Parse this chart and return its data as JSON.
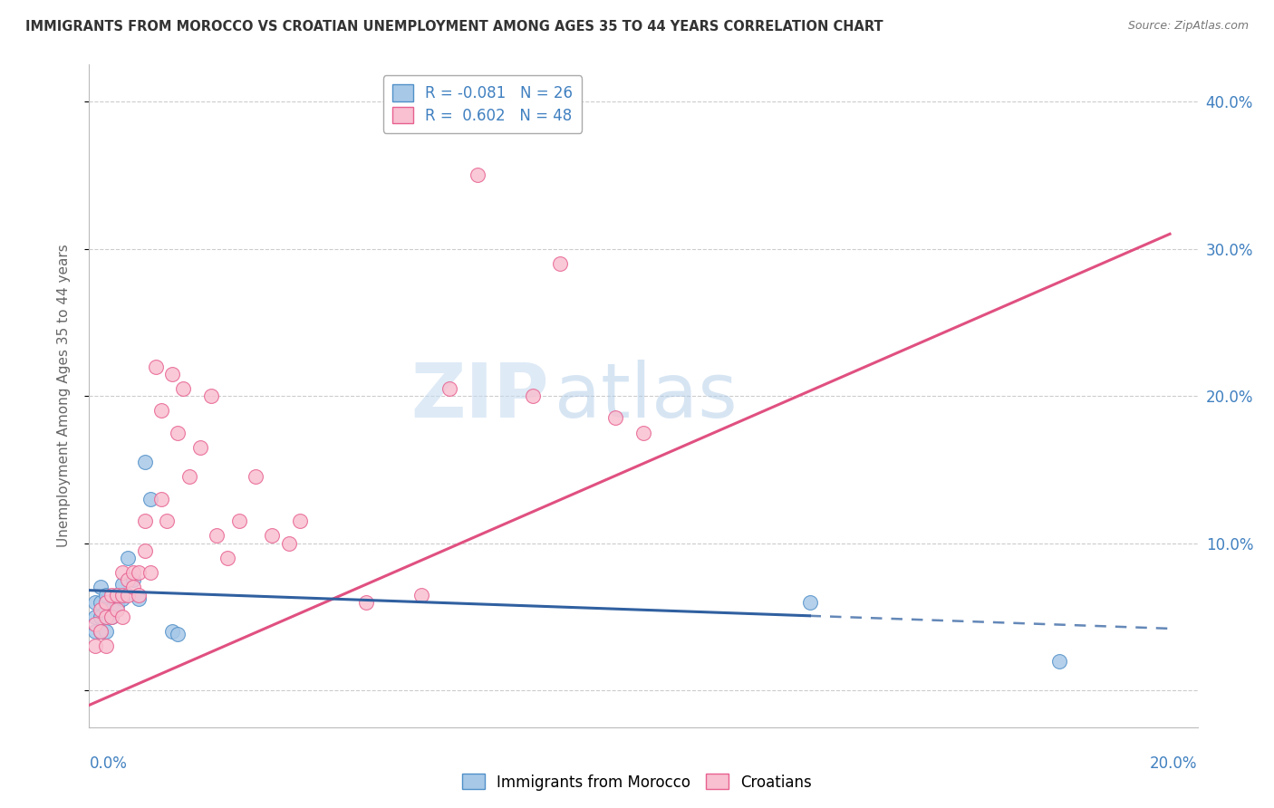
{
  "title": "IMMIGRANTS FROM MOROCCO VS CROATIAN UNEMPLOYMENT AMONG AGES 35 TO 44 YEARS CORRELATION CHART",
  "source": "Source: ZipAtlas.com",
  "ylabel": "Unemployment Among Ages 35 to 44 years",
  "ytick_values": [
    0.0,
    0.1,
    0.2,
    0.3,
    0.4
  ],
  "ytick_labels_right": [
    "",
    "10.0%",
    "20.0%",
    "30.0%",
    "40.0%"
  ],
  "xlim": [
    0.0,
    0.2
  ],
  "ylim": [
    -0.025,
    0.425
  ],
  "legend_line1": "R = -0.081   N = 26",
  "legend_line2": "R =  0.602   N = 48",
  "legend_label1": "Immigrants from Morocco",
  "legend_label2": "Croatians",
  "color_blue_fill": "#A8C8E8",
  "color_pink_fill": "#F8C0D0",
  "color_blue_edge": "#5090C8",
  "color_pink_edge": "#E86090",
  "color_blue_line": "#3060A0",
  "color_pink_line": "#E05080",
  "color_title": "#333333",
  "color_source": "#777777",
  "color_axis_label": "#4080C0",
  "watermark_zip": "ZIP",
  "watermark_atlas": "atlas",
  "blue_scatter_x": [
    0.001,
    0.001,
    0.001,
    0.002,
    0.002,
    0.002,
    0.002,
    0.003,
    0.003,
    0.003,
    0.003,
    0.004,
    0.004,
    0.005,
    0.005,
    0.006,
    0.006,
    0.007,
    0.008,
    0.009,
    0.01,
    0.011,
    0.015,
    0.016,
    0.13,
    0.175
  ],
  "blue_scatter_y": [
    0.04,
    0.05,
    0.06,
    0.04,
    0.05,
    0.06,
    0.07,
    0.04,
    0.055,
    0.06,
    0.065,
    0.05,
    0.055,
    0.058,
    0.065,
    0.062,
    0.072,
    0.09,
    0.075,
    0.062,
    0.155,
    0.13,
    0.04,
    0.038,
    0.06,
    0.02
  ],
  "pink_scatter_x": [
    0.001,
    0.001,
    0.002,
    0.002,
    0.003,
    0.003,
    0.003,
    0.004,
    0.004,
    0.005,
    0.005,
    0.006,
    0.006,
    0.006,
    0.007,
    0.007,
    0.008,
    0.008,
    0.009,
    0.009,
    0.01,
    0.01,
    0.011,
    0.012,
    0.013,
    0.013,
    0.014,
    0.015,
    0.016,
    0.017,
    0.018,
    0.02,
    0.022,
    0.023,
    0.025,
    0.027,
    0.03,
    0.033,
    0.036,
    0.038,
    0.05,
    0.06,
    0.065,
    0.07,
    0.08,
    0.085,
    0.095,
    0.1
  ],
  "pink_scatter_y": [
    0.03,
    0.045,
    0.04,
    0.055,
    0.03,
    0.05,
    0.06,
    0.05,
    0.065,
    0.055,
    0.065,
    0.05,
    0.065,
    0.08,
    0.065,
    0.075,
    0.07,
    0.08,
    0.065,
    0.08,
    0.095,
    0.115,
    0.08,
    0.22,
    0.13,
    0.19,
    0.115,
    0.215,
    0.175,
    0.205,
    0.145,
    0.165,
    0.2,
    0.105,
    0.09,
    0.115,
    0.145,
    0.105,
    0.1,
    0.115,
    0.06,
    0.065,
    0.205,
    0.35,
    0.2,
    0.29,
    0.185,
    0.175
  ],
  "blue_line_x0": 0.0,
  "blue_line_x1": 0.195,
  "blue_line_y0": 0.068,
  "blue_line_y1": 0.042,
  "blue_line_solid_end_x": 0.13,
  "pink_line_x0": 0.0,
  "pink_line_x1": 0.195,
  "pink_line_y0": -0.01,
  "pink_line_y1": 0.31
}
